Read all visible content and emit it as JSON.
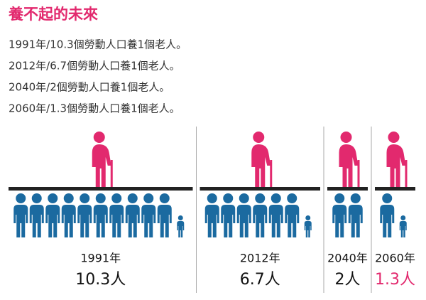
{
  "chart_data": {
    "type": "pictogram",
    "title": "養不起的未來",
    "annotations": [
      "1991年/10.3個勞動人口養1個老人。",
      "2012年/6.7個勞動人口養1個老人。",
      "2040年/2個勞動人口養1個老人。",
      "2060年/1.3個勞動人口養1個老人。"
    ],
    "categories": [
      "1991年",
      "2012年",
      "2040年",
      "2060年"
    ],
    "values": [
      10.3,
      6.7,
      2,
      1.3
    ],
    "value_labels": [
      "10.3人",
      "6.7人",
      "2人",
      "1.3人"
    ],
    "color": "#1b6aa0",
    "elder_color": "#e2296e",
    "value_label_colors": [
      "#111111",
      "#111111",
      "#111111",
      "#e2296e"
    ]
  }
}
